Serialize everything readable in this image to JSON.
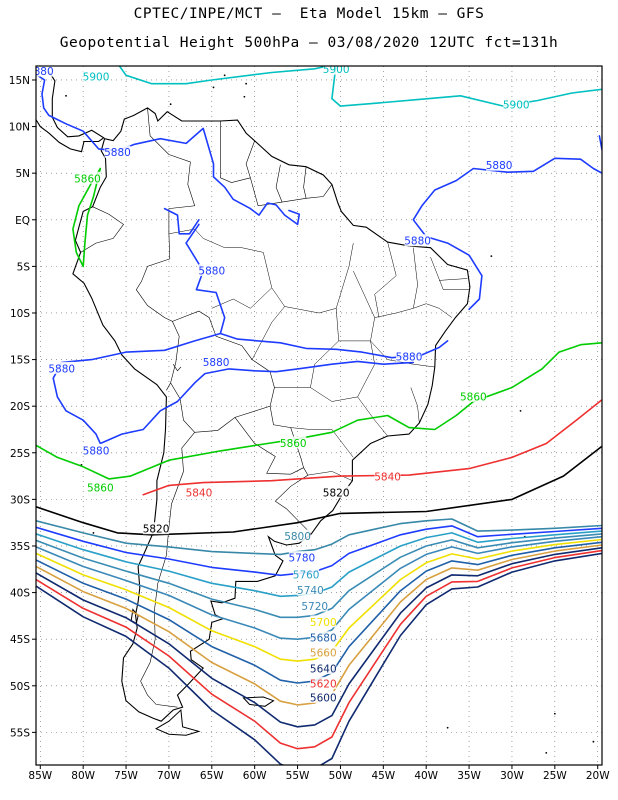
{
  "title_line1": "CPTEC/INPE/MCT –  Eta Model 15km – GFS",
  "title_line2": "Geopotential Height 500hPa – 03/08/2020 12UTC fct=131h",
  "axes": {
    "lon_labels": [
      "85W",
      "80W",
      "75W",
      "70W",
      "65W",
      "60W",
      "55W",
      "50W",
      "45W",
      "40W",
      "35W",
      "30W",
      "25W",
      "20W"
    ],
    "lat_labels": [
      "15N",
      "10N",
      "5N",
      "EQ",
      "5S",
      "10S",
      "15S",
      "20S",
      "25S",
      "30S",
      "35S",
      "40S",
      "45S",
      "50S",
      "55S"
    ],
    "lon_range": [
      -85.5,
      -19.5
    ],
    "lat_range": [
      16.5,
      -58.5
    ],
    "grid": "dotted"
  },
  "contours": [
    {
      "name": "5900",
      "color": "#00c0c0",
      "labels": [
        {
          "text": "5900",
          "lon": -78.5,
          "lat": 15.3
        },
        {
          "text": "5900",
          "lon": -50.5,
          "lat": 16.1
        },
        {
          "text": "5900",
          "lon": -29.5,
          "lat": 12.3
        }
      ]
    },
    {
      "name": "5880",
      "color": "#1e3cff",
      "labels": [
        {
          "text": "5880",
          "lon": -85.0,
          "lat": 15.9
        },
        {
          "text": "5880",
          "lon": -76.0,
          "lat": 7.2
        },
        {
          "text": "5880",
          "lon": -31.5,
          "lat": 5.8
        },
        {
          "text": "5880",
          "lon": -41.0,
          "lat": -2.3
        },
        {
          "text": "5880",
          "lon": -65.0,
          "lat": -5.5
        },
        {
          "text": "5880",
          "lon": -42.0,
          "lat": -14.7
        },
        {
          "text": "5880",
          "lon": -64.5,
          "lat": -15.3
        },
        {
          "text": "5880",
          "lon": -82.5,
          "lat": -16.0
        },
        {
          "text": "5880",
          "lon": -78.5,
          "lat": -24.8
        }
      ]
    },
    {
      "name": "5860",
      "color": "#00cc00",
      "labels": [
        {
          "text": "5860",
          "lon": -79.5,
          "lat": 4.4
        },
        {
          "text": "5860",
          "lon": -34.5,
          "lat": -19.0
        },
        {
          "text": "5860",
          "lon": -55.5,
          "lat": -24.0
        },
        {
          "text": "5860",
          "lon": -78.0,
          "lat": -28.8
        }
      ]
    },
    {
      "name": "5840",
      "color": "#ee3030",
      "labels": [
        {
          "text": "5840",
          "lon": -44.5,
          "lat": -27.6
        },
        {
          "text": "5840",
          "lon": -66.5,
          "lat": -29.3
        }
      ]
    },
    {
      "name": "5820",
      "color": "#000000",
      "labels": [
        {
          "text": "5820",
          "lon": -50.5,
          "lat": -29.3
        },
        {
          "text": "5820",
          "lon": -71.5,
          "lat": -33.2
        }
      ]
    },
    {
      "name": "5800",
      "color": "#3888a8",
      "labels": [
        {
          "text": "5800",
          "lon": -55.0,
          "lat": -34.0
        }
      ]
    },
    {
      "name": "5780",
      "color": "#1e3cff",
      "labels": [
        {
          "text": "5780",
          "lon": -54.5,
          "lat": -36.3
        }
      ]
    },
    {
      "name": "5760",
      "color": "#2aa0c8",
      "labels": [
        {
          "text": "5760",
          "lon": -54.0,
          "lat": -38.1
        }
      ]
    },
    {
      "name": "5740",
      "color": "#3a8cb4",
      "labels": [
        {
          "text": "5740",
          "lon": -53.5,
          "lat": -39.8
        }
      ]
    },
    {
      "name": "5720",
      "color": "#3a88b8",
      "labels": [
        {
          "text": "5720",
          "lon": -53.0,
          "lat": -41.5
        }
      ]
    },
    {
      "name": "5700",
      "color": "#f0e000",
      "labels": [
        {
          "text": "5700",
          "lon": -52.0,
          "lat": -43.2
        }
      ]
    },
    {
      "name": "5680",
      "color": "#2060a8",
      "labels": [
        {
          "text": "5680",
          "lon": -52.0,
          "lat": -44.9
        }
      ]
    },
    {
      "name": "5660",
      "color": "#d8a040",
      "labels": [
        {
          "text": "5660",
          "lon": -52.0,
          "lat": -46.5
        }
      ]
    },
    {
      "name": "5640",
      "color": "#102a70",
      "labels": [
        {
          "text": "5640",
          "lon": -52.0,
          "lat": -48.2
        }
      ]
    },
    {
      "name": "5620",
      "color": "#ee3030",
      "labels": [
        {
          "text": "5620",
          "lon": -52.0,
          "lat": -49.8
        }
      ]
    },
    {
      "name": "5600",
      "color": "#102a70",
      "labels": [
        {
          "text": "5600",
          "lon": -52.0,
          "lat": -51.3
        }
      ]
    }
  ],
  "frame_color": "#000000",
  "coast_color": "#000000"
}
